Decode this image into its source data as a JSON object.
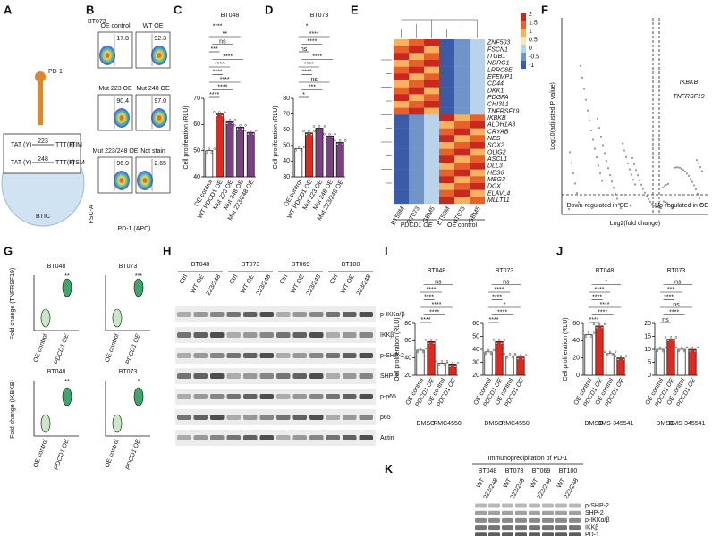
{
  "A": {
    "label": "A",
    "pd1": "PD-1",
    "tat1": "TAT (Y)",
    "pos1": "223",
    "ttt1": "TTT(F)",
    "motif1": "ITIM",
    "tat2": "TAT (Y)",
    "pos2": "248",
    "ttt2": "TTT(F)",
    "motif2": "ITSM",
    "cell": "BTIC"
  },
  "B": {
    "label": "B",
    "title": "BT073",
    "ylabel": "FSC-A",
    "xlabel": "PD-1 (APC)",
    "plots": [
      {
        "name": "OE control",
        "pct": "17.8"
      },
      {
        "name": "WT OE",
        "pct": "92.3"
      },
      {
        "name": "Mut 223 OE",
        "pct": "90.4"
      },
      {
        "name": "Mut 248 OE",
        "pct": "97.0"
      },
      {
        "name": "Mut 223/248 OE",
        "pct": "96.9"
      },
      {
        "name": "Not stain",
        "pct": "2.65"
      }
    ]
  },
  "C": {
    "label": "C",
    "title": "BT048",
    "ylabel": "Cell proliferation (RLU)",
    "categories": [
      "OE control",
      "WT PDCD1 OE",
      "Mut 223 OE",
      "Mut 248 OE",
      "Mut 223/248 OE"
    ],
    "values": [
      50,
      64,
      61,
      59,
      57
    ],
    "colors": [
      "#ffffff",
      "#e0281e",
      "#7b3f86",
      "#7b3f86",
      "#7b3f86"
    ],
    "ylim": [
      40,
      70
    ],
    "yticks": [
      40,
      50,
      60,
      70
    ],
    "significance": [
      "****",
      "****",
      "****",
      "****",
      "****",
      "****",
      "***",
      "ns",
      "**",
      "****"
    ]
  },
  "D": {
    "label": "D",
    "title": "BT073",
    "ylabel": "Cell proliferation (RLU)",
    "categories": [
      "OE control",
      "WT PDCD1 OE",
      "Mut 223 OE",
      "Mut 248 OE",
      "Mut 223/248 OE"
    ],
    "values": [
      48,
      58,
      61,
      56,
      52
    ],
    "colors": [
      "#ffffff",
      "#e0281e",
      "#7b3f86",
      "#7b3f86",
      "#7b3f86"
    ],
    "ylim": [
      30,
      80
    ],
    "yticks": [
      30,
      40,
      50,
      60,
      70,
      80
    ],
    "significance": [
      "*",
      "***",
      "ns",
      "****",
      "****",
      "****",
      "ns",
      "****",
      "****",
      "*"
    ]
  },
  "E": {
    "label": "E",
    "columns": [
      "BT53M",
      "BT073",
      "GBM5",
      "BT53M",
      "BT073",
      "GBM5"
    ],
    "groups": [
      "PDCD1 OE",
      "OE control"
    ],
    "scale": [
      "2",
      "1.5",
      "1",
      "0.5",
      "0",
      "-0.5",
      "-1"
    ],
    "genes": [
      "ZNF503",
      "FSCN1",
      "ITGB1",
      "NDRG1",
      "LRRC8E",
      "EFEMP1",
      "CD44",
      "DKK1",
      "PDGFA",
      "CHI3L1",
      "TNFRSF19",
      "IKBKB",
      "ALDH1A3",
      "CRYAB",
      "NES",
      "SOX2",
      "OLIG2",
      "ASCL1",
      "DLL3",
      "HES6",
      "MEG3",
      "DCX",
      "ELAVL4",
      "MLLT11"
    ]
  },
  "F": {
    "label": "F",
    "ylabel": "Log10(adjusted P value)",
    "xlabel": "Log2(fold change)",
    "hit1": "IKBKB",
    "hit2": "TNFRSF19",
    "down": "Down-regulated in OE",
    "up": "Up-regulated in OE"
  },
  "G": {
    "label": "G",
    "ylabel1": "Fold change (TNFRSF19)",
    "ylabel2": "Fold change (IKBKB)",
    "categories": [
      "OE control",
      "PDCD1 OE"
    ],
    "plots": [
      {
        "title": "BT048",
        "star": "**"
      },
      {
        "title": "BT073",
        "star": "***"
      },
      {
        "title": "BT048",
        "star": "**"
      },
      {
        "title": "BT073",
        "star": "*"
      }
    ]
  },
  "H": {
    "label": "H",
    "lines": [
      "BT048",
      "BT073",
      "BT069",
      "BT100"
    ],
    "lanes": [
      "Ctrl",
      "WT OE",
      "223/248"
    ],
    "proteins": [
      "p-IKKα/β",
      "IKKβ",
      "p-SHP-2",
      "SHP-2",
      "p-p65",
      "p65",
      "Actin"
    ]
  },
  "I": {
    "label": "I",
    "groups": [
      "DMSO",
      "RMC4550"
    ],
    "charts": [
      {
        "title": "BT048",
        "ylabel": "Cell proliferation (RLU)",
        "categories": [
          "OE control",
          "PDCD1 OE",
          "OE control",
          "PDCD1 OE"
        ],
        "values": [
          49,
          59,
          34,
          32
        ],
        "colors": [
          "#ffffff",
          "#e0281e",
          "#ffffff",
          "#e0281e"
        ],
        "ylim": [
          20,
          80
        ],
        "yticks": [
          20,
          40,
          60,
          80
        ],
        "significance": [
          "****",
          "****",
          "****",
          "****",
          "****",
          "ns"
        ]
      },
      {
        "title": "BT073",
        "ylabel": "",
        "categories": [
          "OE control",
          "PDCD1 OE",
          "OE control",
          "PDCD1 OE"
        ],
        "values": [
          38,
          46,
          35,
          34
        ],
        "colors": [
          "#ffffff",
          "#e0281e",
          "#ffffff",
          "#e0281e"
        ],
        "ylim": [
          20,
          60
        ],
        "yticks": [
          20,
          30,
          40,
          50,
          60
        ],
        "significance": [
          "****",
          "****",
          "*",
          "****",
          "****",
          "ns"
        ]
      }
    ]
  },
  "J": {
    "label": "J",
    "groups": [
      "DMSO",
      "BMS-345541"
    ],
    "charts": [
      {
        "title": "BT048",
        "ylabel": "Cell proliferation (RLU)",
        "categories": [
          "OE control",
          "PDCD1 OE",
          "OE control",
          "PDCD1 OE"
        ],
        "values": [
          47,
          57,
          25,
          20
        ],
        "colors": [
          "#ffffff",
          "#e0281e",
          "#ffffff",
          "#e0281e"
        ],
        "ylim": [
          0,
          60
        ],
        "yticks": [
          0,
          20,
          40,
          60
        ],
        "significance": [
          "****",
          "****",
          "****",
          "****",
          "****",
          "*"
        ]
      },
      {
        "title": "BT073",
        "ylabel": "",
        "categories": [
          "OE control",
          "PDCD1 OE",
          "OE control",
          "PDCD1 OE"
        ],
        "values": [
          10,
          14,
          10,
          10
        ],
        "colors": [
          "#ffffff",
          "#e0281e",
          "#ffffff",
          "#e0281e"
        ],
        "ylim": [
          0,
          20
        ],
        "yticks": [
          0,
          5,
          10,
          15,
          20
        ],
        "significance": [
          "ns",
          "****",
          "ns",
          "****",
          "***",
          "ns"
        ]
      }
    ]
  },
  "K": {
    "label": "K",
    "title": "Immunoprecipitation of PD-1",
    "lines": [
      "BT048",
      "BT073",
      "BT069",
      "BT100"
    ],
    "lanes": [
      "WT",
      "223/248"
    ],
    "proteins": [
      "p-SHP-2",
      "SHP-2",
      "p-IKKα/β",
      "IKKβ",
      "PD-1"
    ]
  }
}
